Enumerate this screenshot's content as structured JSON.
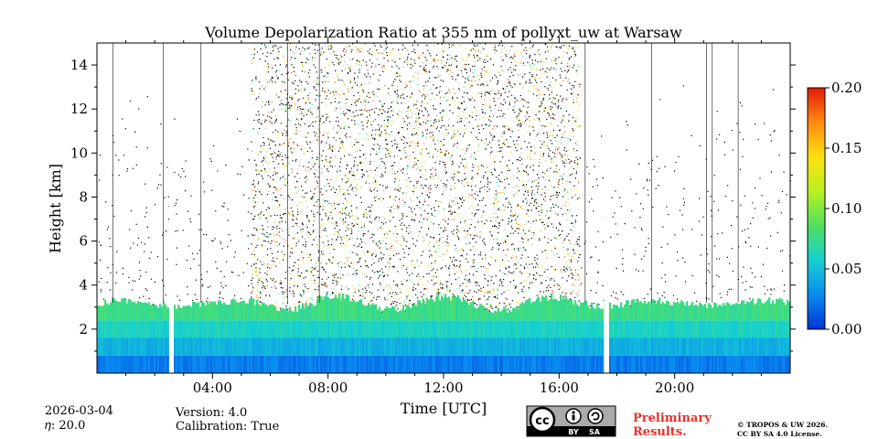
{
  "chart_data": {
    "type": "heatmap",
    "title": "Volume Depolarization Ratio at 355 nm of pollyxt_uw at Warsaw",
    "xlabel": "Time [UTC]",
    "ylabel": "Height [km]",
    "xlim": [
      0,
      24
    ],
    "ylim": [
      0,
      15
    ],
    "xticks": [
      4,
      8,
      12,
      16,
      20
    ],
    "xtick_labels": [
      "04:00",
      "08:00",
      "12:00",
      "16:00",
      "20:00"
    ],
    "yticks": [
      2,
      4,
      6,
      8,
      10,
      12,
      14
    ],
    "ytick_labels": [
      "2",
      "4",
      "6",
      "8",
      "10",
      "12",
      "14"
    ],
    "colorbar": {
      "min": 0.0,
      "max": 0.2,
      "ticks": [
        0.0,
        0.05,
        0.1,
        0.15,
        0.2
      ],
      "tick_labels": [
        "0.00",
        "0.05",
        "0.10",
        "0.15",
        "0.20"
      ],
      "colormap": [
        "#0033d6",
        "#0a8cf0",
        "#16d0d0",
        "#4fe060",
        "#b8f020",
        "#ffe010",
        "#ff8a10",
        "#e41a0a"
      ]
    },
    "data_gaps_hours": [
      [
        2.5,
        2.65
      ],
      [
        17.55,
        17.7
      ]
    ],
    "low_ratio_layer_top_km": 3.0,
    "noisy_daytime_window_hours": [
      5.3,
      16.7
    ]
  },
  "info": {
    "date": "2026-03-04",
    "eta_label": "𝜂: 20.0",
    "version": "Version: 4.0",
    "calibration": "Calibration: True"
  },
  "license_badge": {
    "text_by": "BY",
    "text_sa": "SA",
    "text_cc": "cc"
  },
  "preliminary": [
    "Preliminary",
    "Results."
  ],
  "copyright": [
    "© TROPOS & UW 2026.",
    "CC BY SA 4.0 License."
  ]
}
